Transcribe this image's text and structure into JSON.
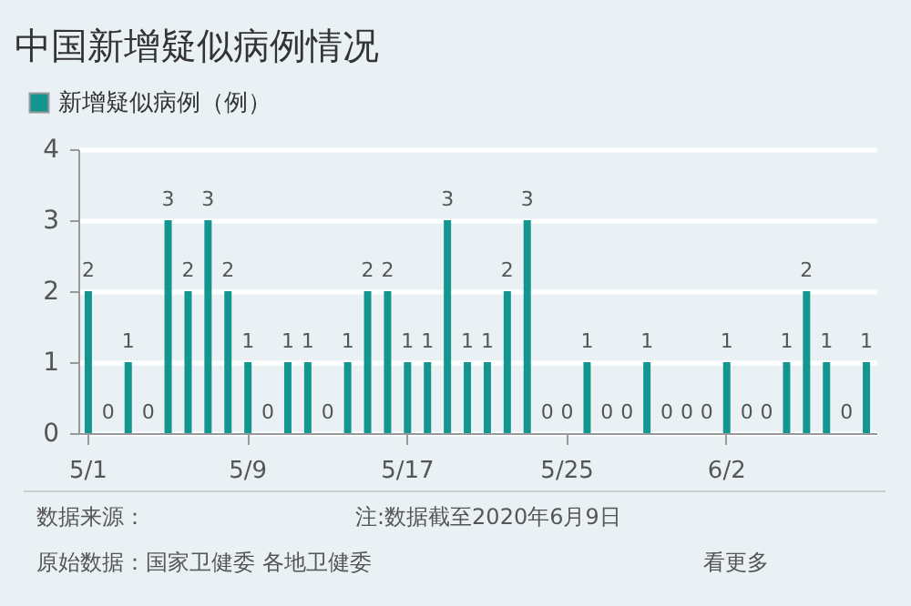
{
  "chart_data": {
    "type": "bar",
    "title": "中国新增疑似病例情况",
    "categories": [
      "5/1",
      null,
      null,
      null,
      null,
      null,
      null,
      null,
      "5/9",
      null,
      null,
      null,
      null,
      null,
      null,
      null,
      "5/17",
      null,
      null,
      null,
      null,
      null,
      null,
      null,
      "5/25",
      null,
      null,
      null,
      null,
      null,
      null,
      null,
      "6/2",
      null,
      null,
      null,
      null,
      null,
      null,
      null
    ],
    "series": [
      {
        "name": "新增疑似病例（例）",
        "color": "#12968f",
        "values": [
          2,
          0,
          1,
          0,
          3,
          2,
          3,
          2,
          1,
          0,
          1,
          1,
          0,
          1,
          2,
          2,
          1,
          1,
          3,
          1,
          1,
          2,
          3,
          0,
          0,
          1,
          0,
          0,
          1,
          0,
          0,
          0,
          1,
          0,
          0,
          1,
          2,
          1,
          0,
          1
        ]
      }
    ],
    "ylim": [
      0,
      4
    ],
    "yticks": [
      0,
      1,
      2,
      3,
      4
    ],
    "grid": "y",
    "legend": "top left",
    "data_labels": true,
    "annotations": [
      "数据来源：",
      "注:数据截至2020年6月9日",
      "原始数据：国家卫健委 各地卫健委",
      "看更多"
    ]
  }
}
